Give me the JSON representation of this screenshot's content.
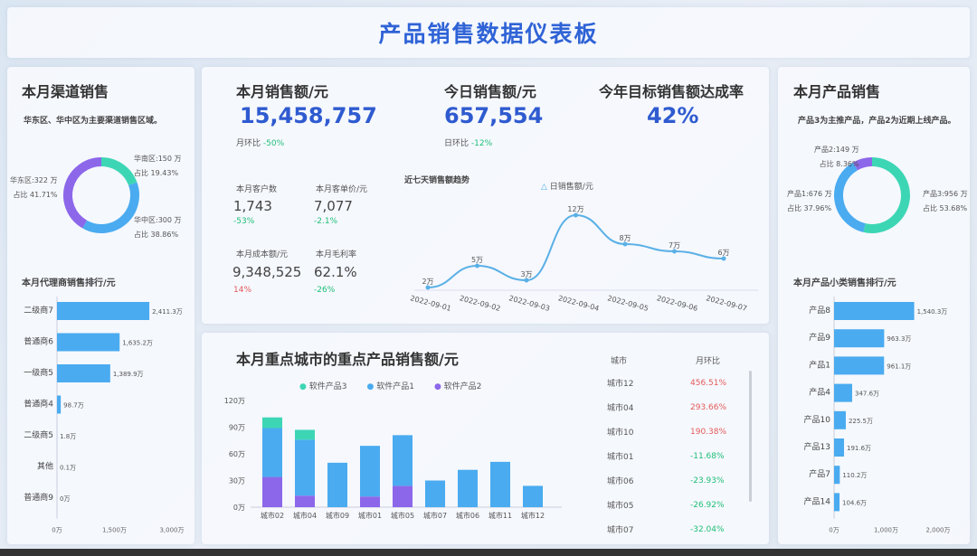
{
  "title": "产品销售数据仪表板",
  "colors": {
    "accent": "#2f5bd0",
    "teal": "#3dd6b5",
    "blue": "#4aabf0",
    "purple": "#8c67ea",
    "up": "#e55a5a",
    "down": "#1fbf78"
  },
  "channel": {
    "title": "本月渠道销售",
    "note": "华东区、华中区为主要渠道销售区域。",
    "donut": [
      {
        "name": "华南区",
        "value": "150 万",
        "share": "占比 19.43%",
        "pct": 19.43
      },
      {
        "name": "华中区",
        "value": "300 万",
        "share": "占比 38.86%",
        "pct": 38.86
      },
      {
        "name": "华东区",
        "value": "322 万",
        "share": "占比 41.71%",
        "pct": 41.71
      }
    ]
  },
  "agent": {
    "title": "本月代理商销售排行/元",
    "ticks": [
      "0万",
      "1,500万",
      "3,000万"
    ],
    "max": 3000,
    "items": [
      {
        "name": "二级商7",
        "value": 2411.3,
        "label": "2,411.3万"
      },
      {
        "name": "普通商6",
        "value": 1635.2,
        "label": "1,635.2万"
      },
      {
        "name": "一级商5",
        "value": 1389.9,
        "label": "1,389.9万"
      },
      {
        "name": "普通商4",
        "value": 98.7,
        "label": "98.7万"
      },
      {
        "name": "二级商5",
        "value": 1.8,
        "label": "1.8万"
      },
      {
        "name": "其他",
        "value": 0.1,
        "label": "0.1万"
      },
      {
        "name": "普通商9",
        "value": 0,
        "label": "0万"
      }
    ]
  },
  "kpi": {
    "month": {
      "label": "本月销售额/元",
      "value": "15,458,757",
      "cmp_label": "月环比",
      "cmp": "-50%"
    },
    "today": {
      "label": "今日销售额/元",
      "value": "657,554",
      "cmp_label": "日环比",
      "cmp": "-12%"
    },
    "target": {
      "label": "今年目标销售额达成率",
      "value": "42%"
    },
    "customers": {
      "label": "本月客户数",
      "value": "1,743",
      "cmp": "-53%"
    },
    "unit_price": {
      "label": "本月客单价/元",
      "value": "7,077",
      "cmp": "-2.1%"
    },
    "cost": {
      "label": "本月成本额/元",
      "value": "9,348,525",
      "cmp": "14%"
    },
    "margin": {
      "label": "本月毛利率",
      "value": "62.1%",
      "cmp": "-26%"
    }
  },
  "trend": {
    "title": "近七天销售额趋势",
    "legend": "日销售额/元",
    "chart_data": {
      "type": "line",
      "x": [
        "2022-09-01",
        "2022-09-02",
        "2022-09-03",
        "2022-09-04",
        "2022-09-05",
        "2022-09-06",
        "2022-09-07"
      ],
      "values": [
        2,
        5,
        3,
        12,
        8,
        7,
        6
      ],
      "labels": [
        "2万",
        "5万",
        "3万",
        "12万",
        "8万",
        "7万",
        "6万"
      ],
      "series_name": "日销售额/元"
    }
  },
  "city": {
    "title": "本月重点城市的重点产品销售额/元",
    "chart_data": {
      "type": "bar",
      "stacked": true,
      "categories": [
        "城市02",
        "城市04",
        "城市09",
        "城市01",
        "城市05",
        "城市07",
        "城市06",
        "城市11",
        "城市12"
      ],
      "yticks": [
        "0万",
        "30万",
        "60万",
        "90万",
        "120万"
      ],
      "ylim": [
        0,
        120
      ],
      "series": [
        {
          "name": "软件产品2",
          "values": [
            34,
            13,
            0,
            12,
            24,
            0,
            0,
            0,
            0
          ]
        },
        {
          "name": "软件产品1",
          "values": [
            55,
            63,
            50,
            57,
            57,
            30,
            42,
            51,
            24
          ]
        },
        {
          "name": "软件产品3",
          "values": [
            12,
            11,
            0,
            0,
            0,
            0,
            0,
            0,
            0
          ]
        }
      ],
      "legend_order": [
        "软件产品3",
        "软件产品1",
        "软件产品2"
      ]
    }
  },
  "table": {
    "headers": [
      "城市",
      "月环比"
    ],
    "rows": [
      {
        "city": "城市12",
        "value": "456.51%",
        "up": true
      },
      {
        "city": "城市04",
        "value": "293.66%",
        "up": true
      },
      {
        "city": "城市10",
        "value": "190.38%",
        "up": true
      },
      {
        "city": "城市01",
        "value": "-11.68%",
        "up": false
      },
      {
        "city": "城市06",
        "value": "-23.93%",
        "up": false
      },
      {
        "city": "城市05",
        "value": "-26.92%",
        "up": false
      },
      {
        "city": "城市07",
        "value": "-32.04%",
        "up": false
      }
    ]
  },
  "product": {
    "title": "本月产品销售",
    "note": "产品3为主推产品，产品2为近期上线产品。",
    "donut": [
      {
        "name": "产品3",
        "value": "956 万",
        "share": "占比 53.68%",
        "pct": 53.68
      },
      {
        "name": "产品1",
        "value": "676 万",
        "share": "占比 37.96%",
        "pct": 37.96
      },
      {
        "name": "产品2",
        "value": "149 万",
        "share": "占比 8.36%",
        "pct": 8.36
      }
    ]
  },
  "subcat": {
    "title": "本月产品小类销售排行/元",
    "ticks": [
      "0万",
      "1,000万",
      "2,000万"
    ],
    "max": 2000,
    "items": [
      {
        "name": "产品8",
        "value": 1540.3,
        "label": "1,540.3万"
      },
      {
        "name": "产品9",
        "value": 963.3,
        "label": "963.3万"
      },
      {
        "name": "产品1",
        "value": 961.1,
        "label": "961.1万"
      },
      {
        "name": "产品4",
        "value": 347.6,
        "label": "347.6万"
      },
      {
        "name": "产品10",
        "value": 225.5,
        "label": "225.5万"
      },
      {
        "name": "产品13",
        "value": 191.6,
        "label": "191.6万"
      },
      {
        "name": "产品7",
        "value": 110.2,
        "label": "110.2万"
      },
      {
        "name": "产品14",
        "value": 104.6,
        "label": "104.6万"
      }
    ]
  }
}
